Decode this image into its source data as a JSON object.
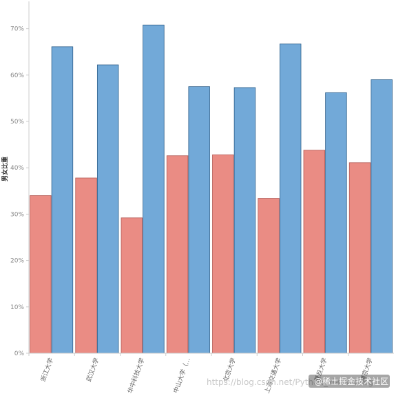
{
  "chart_data": {
    "type": "bar",
    "ylabel": "男女比重",
    "ylim": [
      0,
      0.75
    ],
    "yticks": [
      0,
      0.1,
      0.2,
      0.3,
      0.4,
      0.5,
      0.6,
      0.7
    ],
    "ytick_labels": [
      "0%",
      "10%",
      "20%",
      "30%",
      "40%",
      "50%",
      "60%",
      "70%"
    ],
    "grid": false,
    "categories": [
      "浙江大学",
      "武汉大学",
      "华中科技大学",
      "中山大学（...",
      "北京大学",
      "上海交通大学",
      "复旦大学",
      "南京大学"
    ],
    "series": [
      {
        "values": [
          0.34,
          0.378,
          0.292,
          0.426,
          0.428,
          0.334,
          0.438,
          0.411
        ],
        "color": "#ea8c84",
        "stroke": "#b35a55"
      },
      {
        "values": [
          0.661,
          0.622,
          0.708,
          0.575,
          0.573,
          0.667,
          0.562,
          0.59
        ],
        "color": "#72a9d8",
        "stroke": "#2e5f8a"
      }
    ]
  },
  "watermark": {
    "url_text": "https://blog.csdn.net/Python_xiaowu.org",
    "badge_text": "@稀土掘金技术社区"
  }
}
